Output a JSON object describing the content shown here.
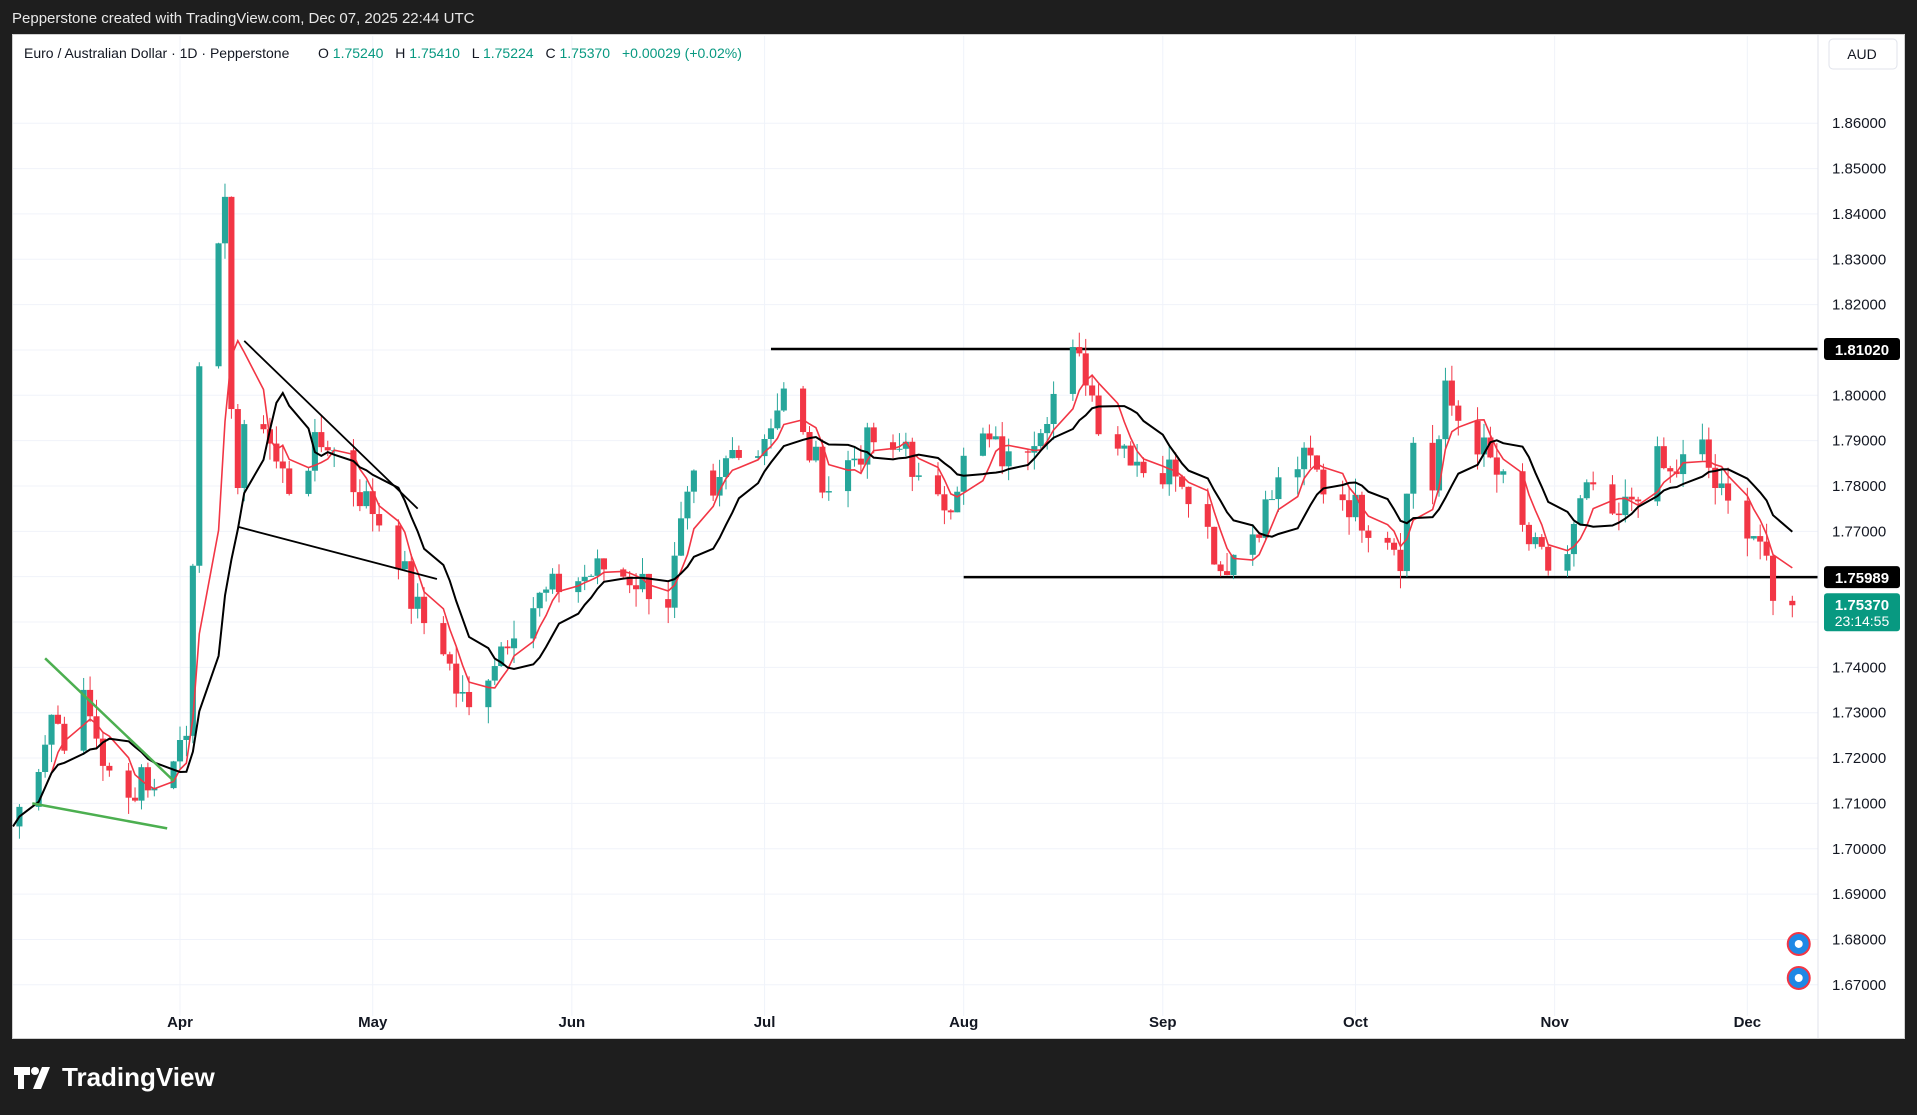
{
  "header": {
    "attribution": "Pepperstone created with TradingView.com, Dec 07, 2025 22:44 UTC"
  },
  "legend": {
    "symbol": "Euro / Australian Dollar · 1D · Pepperstone",
    "open_label": "O",
    "open": "1.75240",
    "high_label": "H",
    "high": "1.75410",
    "low_label": "L",
    "low": "1.75224",
    "close_label": "C",
    "close": "1.75370",
    "change": "+0.00029 (+0.02%)"
  },
  "currency_button": "AUD",
  "footer": {
    "brand": "TradingView"
  },
  "colors": {
    "up": "#26a69a",
    "down": "#f23645",
    "ma_fast": "#f23645",
    "ma_slow": "#000000",
    "trendline_green": "#4caf50",
    "level_line": "#000000",
    "grid": "#f0f3fa",
    "axis_text": "#131722"
  },
  "chart_data": {
    "type": "candlestick",
    "ylim": [
      1.664,
      1.8735
    ],
    "y_ticks": [
      "1.86000",
      "1.85000",
      "1.84000",
      "1.83000",
      "1.82000",
      "1.81000",
      "1.80000",
      "1.79000",
      "1.78000",
      "1.77000",
      "1.76000",
      "1.75000",
      "1.74000",
      "1.73000",
      "1.72000",
      "1.71000",
      "1.70000",
      "1.69000",
      "1.68000",
      "1.67000"
    ],
    "y_tick_values": [
      1.86,
      1.85,
      1.84,
      1.83,
      1.82,
      1.81,
      1.8,
      1.79,
      1.78,
      1.77,
      1.76,
      1.75,
      1.74,
      1.73,
      1.72,
      1.71,
      1.7,
      1.69,
      1.68,
      1.67
    ],
    "x_start": "2025-03-06",
    "x_end": "2025-12-12",
    "month_ticks": [
      {
        "label": "Apr",
        "date": "2025-04-01"
      },
      {
        "label": "May",
        "date": "2025-05-01"
      },
      {
        "label": "Jun",
        "date": "2025-06-01"
      },
      {
        "label": "Jul",
        "date": "2025-07-01"
      },
      {
        "label": "Aug",
        "date": "2025-08-01"
      },
      {
        "label": "Sep",
        "date": "2025-09-01"
      },
      {
        "label": "Oct",
        "date": "2025-10-01"
      },
      {
        "label": "Nov",
        "date": "2025-11-01"
      },
      {
        "label": "Dec",
        "date": "2025-12-01"
      }
    ],
    "closes": [
      [
        "2025-03-06",
        1.705
      ],
      [
        "2025-03-10",
        1.72
      ],
      [
        "2025-03-12",
        1.73
      ],
      [
        "2025-03-14",
        1.725
      ],
      [
        "2025-03-17",
        1.732
      ],
      [
        "2025-03-19",
        1.725
      ],
      [
        "2025-03-21",
        1.715
      ],
      [
        "2025-03-24",
        1.71
      ],
      [
        "2025-03-26",
        1.718
      ],
      [
        "2025-03-28",
        1.712
      ],
      [
        "2025-03-31",
        1.722
      ],
      [
        "2025-04-02",
        1.725
      ],
      [
        "2025-04-03",
        1.765
      ],
      [
        "2025-04-04",
        1.81
      ],
      [
        "2025-04-07",
        1.83
      ],
      [
        "2025-04-08",
        1.84
      ],
      [
        "2025-04-09",
        1.8
      ],
      [
        "2025-04-10",
        1.78
      ],
      [
        "2025-04-11",
        1.79
      ],
      [
        "2025-04-14",
        1.795
      ],
      [
        "2025-04-16",
        1.785
      ],
      [
        "2025-04-18",
        1.78
      ],
      [
        "2025-04-22",
        1.788
      ],
      [
        "2025-04-24",
        1.79
      ],
      [
        "2025-04-28",
        1.78
      ],
      [
        "2025-05-01",
        1.775
      ],
      [
        "2025-05-05",
        1.765
      ],
      [
        "2025-05-07",
        1.755
      ],
      [
        "2025-05-09",
        1.75
      ],
      [
        "2025-05-12",
        1.745
      ],
      [
        "2025-05-14",
        1.735
      ],
      [
        "2025-05-16",
        1.73
      ],
      [
        "2025-05-19",
        1.74
      ],
      [
        "2025-05-21",
        1.745
      ],
      [
        "2025-05-23",
        1.75
      ],
      [
        "2025-05-27",
        1.755
      ],
      [
        "2025-05-30",
        1.758
      ],
      [
        "2025-06-03",
        1.76
      ],
      [
        "2025-06-06",
        1.762
      ],
      [
        "2025-06-10",
        1.76
      ],
      [
        "2025-06-13",
        1.758
      ],
      [
        "2025-06-16",
        1.755
      ],
      [
        "2025-06-18",
        1.77
      ],
      [
        "2025-06-20",
        1.78
      ],
      [
        "2025-06-23",
        1.775
      ],
      [
        "2025-06-25",
        1.785
      ],
      [
        "2025-06-27",
        1.79
      ],
      [
        "2025-06-30",
        1.788
      ],
      [
        "2025-07-02",
        1.795
      ],
      [
        "2025-07-04",
        1.8
      ],
      [
        "2025-07-07",
        1.79
      ],
      [
        "2025-07-09",
        1.785
      ],
      [
        "2025-07-11",
        1.78
      ],
      [
        "2025-07-14",
        1.785
      ],
      [
        "2025-07-16",
        1.788
      ],
      [
        "2025-07-18",
        1.79
      ],
      [
        "2025-07-21",
        1.785
      ],
      [
        "2025-07-23",
        1.79
      ],
      [
        "2025-07-25",
        1.78
      ],
      [
        "2025-07-28",
        1.775
      ],
      [
        "2025-07-30",
        1.778
      ],
      [
        "2025-08-01",
        1.785
      ],
      [
        "2025-08-04",
        1.79
      ],
      [
        "2025-08-06",
        1.788
      ],
      [
        "2025-08-08",
        1.785
      ],
      [
        "2025-08-11",
        1.79
      ],
      [
        "2025-08-13",
        1.795
      ],
      [
        "2025-08-15",
        1.8
      ],
      [
        "2025-08-18",
        1.808
      ],
      [
        "2025-08-20",
        1.805
      ],
      [
        "2025-08-22",
        1.795
      ],
      [
        "2025-08-25",
        1.79
      ],
      [
        "2025-08-27",
        1.788
      ],
      [
        "2025-08-29",
        1.785
      ],
      [
        "2025-09-01",
        1.782
      ],
      [
        "2025-09-03",
        1.785
      ],
      [
        "2025-09-05",
        1.78
      ],
      [
        "2025-09-08",
        1.77
      ],
      [
        "2025-09-10",
        1.762
      ],
      [
        "2025-09-12",
        1.765
      ],
      [
        "2025-09-15",
        1.77
      ],
      [
        "2025-09-17",
        1.775
      ],
      [
        "2025-09-19",
        1.78
      ],
      [
        "2025-09-22",
        1.785
      ],
      [
        "2025-09-24",
        1.785
      ],
      [
        "2025-09-26",
        1.78
      ],
      [
        "2025-09-29",
        1.778
      ],
      [
        "2025-10-01",
        1.775
      ],
      [
        "2025-10-03",
        1.772
      ],
      [
        "2025-10-06",
        1.77
      ],
      [
        "2025-10-08",
        1.765
      ],
      [
        "2025-10-10",
        1.79
      ],
      [
        "2025-10-13",
        1.78
      ],
      [
        "2025-10-15",
        1.8
      ],
      [
        "2025-10-17",
        1.795
      ],
      [
        "2025-10-20",
        1.79
      ],
      [
        "2025-10-22",
        1.785
      ],
      [
        "2025-10-24",
        1.78
      ],
      [
        "2025-10-27",
        1.77
      ],
      [
        "2025-10-29",
        1.765
      ],
      [
        "2025-10-31",
        1.762
      ],
      [
        "2025-11-03",
        1.765
      ],
      [
        "2025-11-05",
        1.775
      ],
      [
        "2025-11-07",
        1.78
      ],
      [
        "2025-11-10",
        1.77
      ],
      [
        "2025-11-12",
        1.775
      ],
      [
        "2025-11-14",
        1.78
      ],
      [
        "2025-11-17",
        1.785
      ],
      [
        "2025-11-19",
        1.782
      ],
      [
        "2025-11-21",
        1.785
      ],
      [
        "2025-11-24",
        1.788
      ],
      [
        "2025-11-26",
        1.78
      ],
      [
        "2025-11-28",
        1.775
      ],
      [
        "2025-12-01",
        1.772
      ],
      [
        "2025-12-03",
        1.768
      ],
      [
        "2025-12-05",
        1.7534
      ],
      [
        "2025-12-08",
        1.7537
      ]
    ],
    "horizontal_levels": [
      {
        "price": 1.8102,
        "label": "1.81020",
        "from": "2025-07-02"
      },
      {
        "price": 1.75989,
        "label": "1.75989",
        "from": "2025-08-01"
      }
    ],
    "last_price": {
      "price": 1.7537,
      "label": "1.75370",
      "countdown": "23:14:55"
    },
    "trendlines": [
      {
        "color": "black",
        "points": [
          [
            "2025-04-11",
            1.812
          ],
          [
            "2025-05-08",
            1.775
          ]
        ]
      },
      {
        "color": "black",
        "points": [
          [
            "2025-04-10",
            1.771
          ],
          [
            "2025-05-11",
            1.7595
          ]
        ]
      },
      {
        "color": "green",
        "points": [
          [
            "2025-03-11",
            1.742
          ],
          [
            "2025-03-31",
            1.715
          ]
        ]
      },
      {
        "color": "green",
        "points": [
          [
            "2025-03-09",
            1.71
          ],
          [
            "2025-03-30",
            1.7045
          ]
        ]
      }
    ],
    "events": [
      {
        "icon": "australia-flag-icon",
        "date": "2025-12-09",
        "price": 1.679
      },
      {
        "icon": "au-eu-flags-icon",
        "date": "2025-12-09",
        "price": 1.6715
      }
    ]
  }
}
